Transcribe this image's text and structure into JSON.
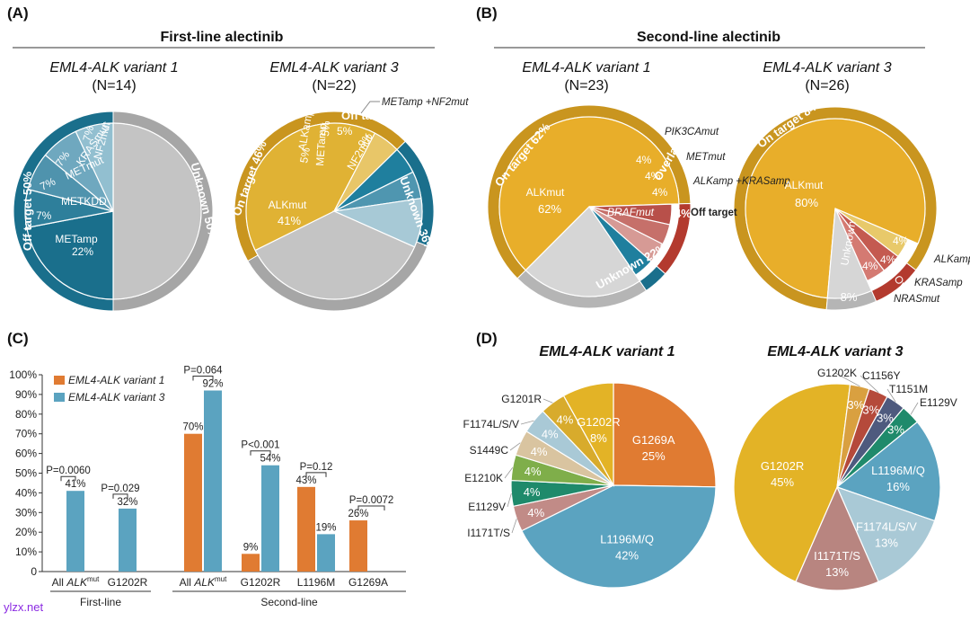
{
  "panels": {
    "A": {
      "tag": "(A)",
      "heading": "First-line alectinib"
    },
    "B": {
      "tag": "(B)",
      "heading": "Second-line alectinib"
    },
    "C": {
      "tag": "(C)"
    },
    "D": {
      "tag": "(D)"
    }
  },
  "variant_titles": {
    "v1": "EML4-ALK variant 1",
    "v3": "EML4-ALK variant 3",
    "v1_bold": "EML4-ALK variant 1",
    "v3_bold": "EML4-ALK variant 3"
  },
  "counts": {
    "a1": "(N=14)",
    "a3": "(N=22)",
    "b1": "(N=23)",
    "b3": "(N=26)"
  },
  "pie_labels": {
    "a1": {
      "unknown": "Unknown 50%",
      "off": "Off target 50%",
      "met_amp": "METamp",
      "met_amp_pct": "22%",
      "met_kdd": "METKDD",
      "met_kdd_pct": "7%",
      "met_mut": "METmut",
      "met_mut_pct": "7%",
      "kras": "KRASmut",
      "kras_pct": "7%",
      "nf2": "NF2mut",
      "nf2_pct": "7%"
    },
    "a3": {
      "on": "On target 46%",
      "alk": "ALKmut",
      "alk_pct": "41%",
      "alk_amp": "ALKamp",
      "alk_amp_pct": "5%",
      "off": "Off target 18%",
      "met_amp": "METamp",
      "met_amp_pct": "5%",
      "combo_pct": "5%",
      "nf2": "NF2mut",
      "nf2_pct": "9%",
      "unknown": "Unknown 36%",
      "callout": "METamp +NF2mut"
    },
    "b1": {
      "on": "On target 62%",
      "alk": "ALKmut",
      "alk_pct": "62%",
      "overlap": "Overlap 12%",
      "pik3ca": "PIK3CAmut",
      "met": "METmut",
      "alk_kras": "ALKamp +KRASamp",
      "braf": "BRAFmut",
      "off": "Off target",
      "p4": "4%",
      "unknown": "Unknown 22%"
    },
    "b3": {
      "on": "On target 84%",
      "alk": "ALKmut",
      "alk_pct": "80%",
      "alk_amp": "ALKamp",
      "kras": "KRASamp",
      "nras": "NRASmut",
      "overlap": "Overlap 8%",
      "unknown": "Unknown",
      "unknown_pct": "8%",
      "p4": "4%"
    }
  },
  "chart_data": [
    {
      "type": "pie",
      "title": "First-line alectinib — EML4-ALK variant 1 (N=14)",
      "outer_ring": [
        {
          "label": "Off target",
          "value": 50
        },
        {
          "label": "Unknown",
          "value": 50
        }
      ],
      "slices": [
        {
          "label": "METamp",
          "value": 22
        },
        {
          "label": "METKDD",
          "value": 7
        },
        {
          "label": "METmut",
          "value": 7
        },
        {
          "label": "KRASmut",
          "value": 7
        },
        {
          "label": "NF2mut",
          "value": 7
        },
        {
          "label": "Unknown",
          "value": 50
        }
      ]
    },
    {
      "type": "pie",
      "title": "First-line alectinib — EML4-ALK variant 3 (N=22)",
      "outer_ring": [
        {
          "label": "On target",
          "value": 46
        },
        {
          "label": "Off target",
          "value": 18
        },
        {
          "label": "Unknown",
          "value": 36
        }
      ],
      "slices": [
        {
          "label": "ALKmut",
          "value": 41
        },
        {
          "label": "ALKamp",
          "value": 5
        },
        {
          "label": "METamp",
          "value": 5
        },
        {
          "label": "METamp+NF2mut",
          "value": 5
        },
        {
          "label": "NF2mut",
          "value": 9
        },
        {
          "label": "Unknown",
          "value": 36
        }
      ]
    },
    {
      "type": "pie",
      "title": "Second-line alectinib — EML4-ALK variant 1 (N=23)",
      "outer_ring": [
        {
          "label": "On target",
          "value": 62
        },
        {
          "label": "Overlap",
          "value": 12
        },
        {
          "label": "Off target",
          "value": 4
        },
        {
          "label": "Unknown",
          "value": 22
        }
      ],
      "slices": [
        {
          "label": "ALKmut",
          "value": 62
        },
        {
          "label": "PIK3CAmut",
          "value": 4
        },
        {
          "label": "METmut",
          "value": 4
        },
        {
          "label": "ALKamp+KRASamp",
          "value": 4
        },
        {
          "label": "BRAFmut",
          "value": 4
        },
        {
          "label": "Unknown",
          "value": 22
        }
      ]
    },
    {
      "type": "pie",
      "title": "Second-line alectinib — EML4-ALK variant 3 (N=26)",
      "outer_ring": [
        {
          "label": "On target",
          "value": 84
        },
        {
          "label": "Overlap",
          "value": 8
        },
        {
          "label": "Unknown",
          "value": 8
        }
      ],
      "slices": [
        {
          "label": "ALKmut",
          "value": 80
        },
        {
          "label": "ALKamp",
          "value": 4
        },
        {
          "label": "KRASamp",
          "value": 4
        },
        {
          "label": "NRASmut",
          "value": 4
        },
        {
          "label": "Unknown",
          "value": 8
        }
      ]
    },
    {
      "type": "bar",
      "title": "Panel C",
      "ylim": [
        0,
        100
      ],
      "yticks": [
        "0",
        "10%",
        "20%",
        "30%",
        "40%",
        "50%",
        "60%",
        "70%",
        "80%",
        "90%",
        "100%"
      ],
      "legend": [
        "EML4-ALK variant 1",
        "EML4-ALK variant 3"
      ],
      "groups": [
        {
          "label": "All ALKmut",
          "section": "First-line",
          "v1": null,
          "v3": 41,
          "v1_label": "",
          "v3_label": "41%",
          "p": "P=0.0060"
        },
        {
          "label": "G1202R",
          "section": "First-line",
          "v1": null,
          "v3": 32,
          "v1_label": "",
          "v3_label": "32%",
          "p": "P=0.029"
        },
        {
          "label": "All ALKmut",
          "section": "Second-line",
          "v1": 70,
          "v3": 92,
          "v1_label": "70%",
          "v3_label": "92%",
          "p": "P=0.064"
        },
        {
          "label": "G1202R",
          "section": "Second-line",
          "v1": 9,
          "v3": 54,
          "v1_label": "9%",
          "v3_label": "54%",
          "p": "P<0.001"
        },
        {
          "label": "L1196M",
          "section": "Second-line",
          "v1": 43,
          "v3": 19,
          "v1_label": "43%",
          "v3_label": "19%",
          "p": "P=0.12"
        },
        {
          "label": "G1269A",
          "section": "Second-line",
          "v1": 26,
          "v3": null,
          "v1_label": "26%",
          "v3_label": "",
          "p": "P=0.0072"
        }
      ],
      "sections": [
        "First-line",
        "Second-line"
      ]
    },
    {
      "type": "pie",
      "title": "EML4-ALK variant 1",
      "slices": [
        {
          "label": "G1269A",
          "value": 25,
          "pct": "25%",
          "color": "#e07b32"
        },
        {
          "label": "L1196M/Q",
          "value": 42,
          "pct": "42%",
          "color": "#5ba3c0"
        },
        {
          "label": "I1171T/S",
          "value": 4,
          "pct": "4%",
          "color": "#c18b87"
        },
        {
          "label": "E1129V",
          "value": 4,
          "pct": "4%",
          "color": "#1f8a6b"
        },
        {
          "label": "E1210K",
          "value": 4,
          "pct": "4%",
          "color": "#7fae4a"
        },
        {
          "label": "S1449C",
          "value": 4,
          "pct": "4%",
          "color": "#d9c4a0"
        },
        {
          "label": "F1174L/S/V",
          "value": 4,
          "pct": "4%",
          "color": "#a9c9d6"
        },
        {
          "label": "G1201R",
          "value": 4,
          "pct": "4%",
          "color": "#d8ab2c"
        },
        {
          "label": "G1202R",
          "value": 8,
          "pct": "8%",
          "color": "#e3b326"
        }
      ]
    },
    {
      "type": "pie",
      "title": "EML4-ALK variant 3",
      "slices": [
        {
          "label": "E1129V",
          "value": 3,
          "pct": "3%",
          "color": "#1f8a6b"
        },
        {
          "label": "L1196M/Q",
          "value": 16,
          "pct": "16%",
          "color": "#5ba3c0"
        },
        {
          "label": "F1174L/S/V",
          "value": 13,
          "pct": "13%",
          "color": "#a9c9d6"
        },
        {
          "label": "I1171T/S",
          "value": 13,
          "pct": "13%",
          "color": "#b88580"
        },
        {
          "label": "G1202R",
          "value": 45,
          "pct": "45%",
          "color": "#e3b326"
        },
        {
          "label": "G1202K",
          "value": 3,
          "pct": "3%",
          "color": "#d9a040"
        },
        {
          "label": "C1156Y",
          "value": 3,
          "pct": "3%",
          "color": "#b54a3b"
        },
        {
          "label": "T1151M",
          "value": 3,
          "pct": "3%",
          "color": "#4e5a7e"
        }
      ]
    }
  ],
  "watermark": "ylzx.net"
}
